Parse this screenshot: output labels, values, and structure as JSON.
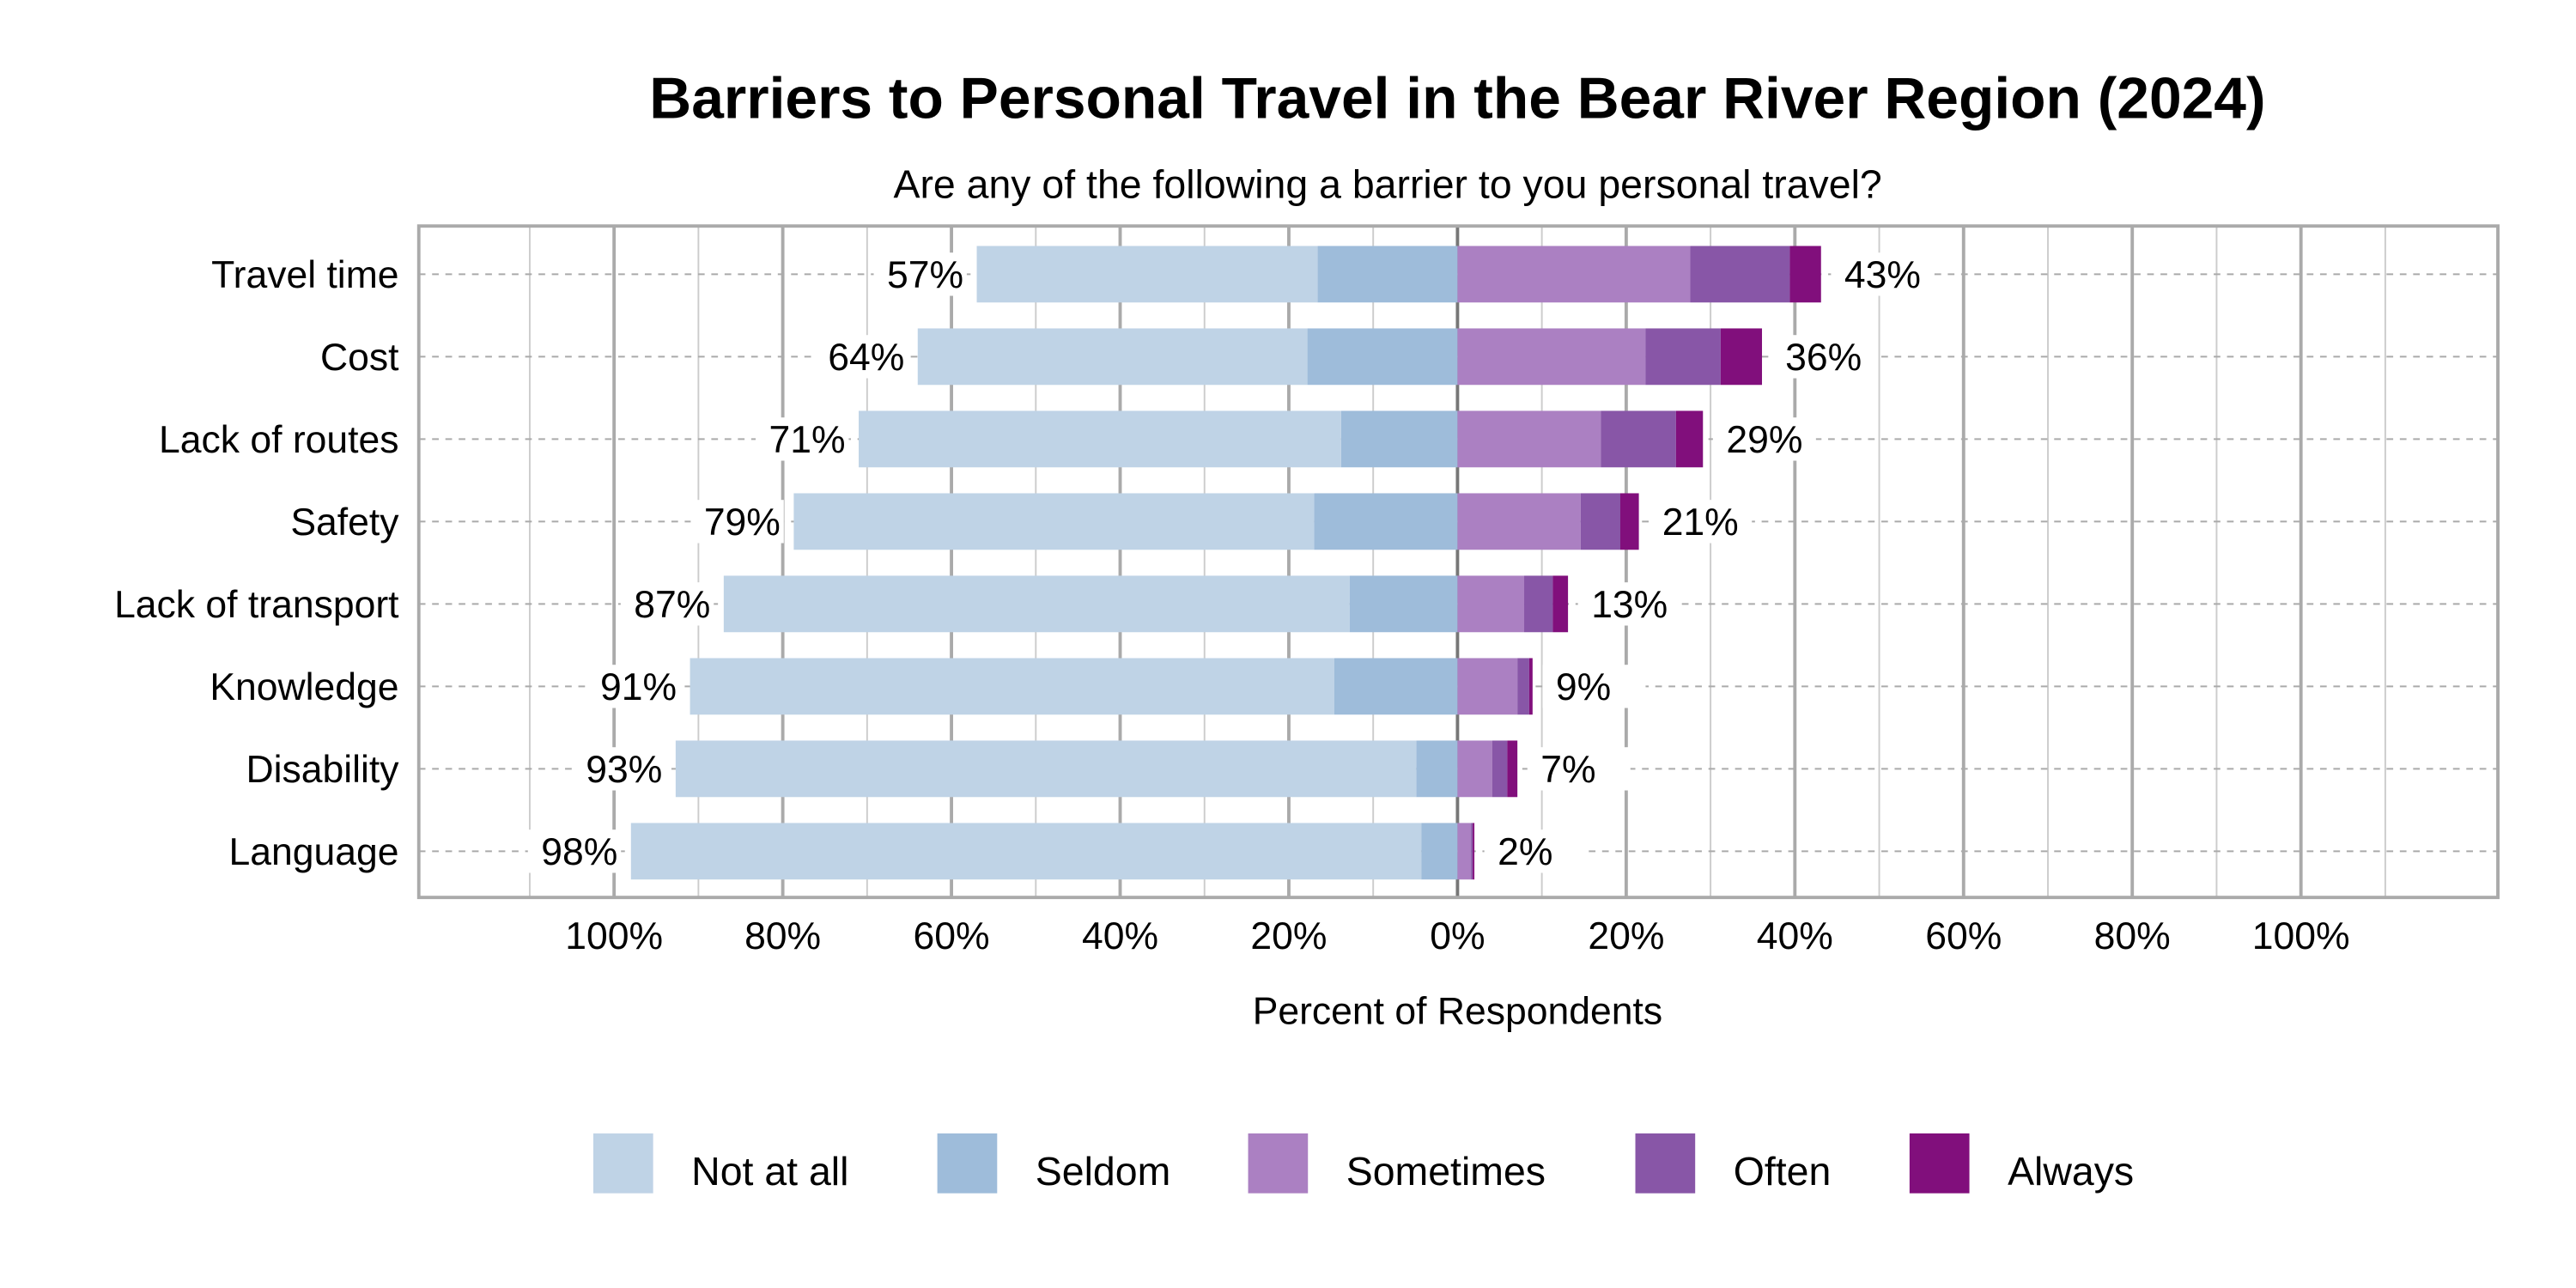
{
  "chart_data": {
    "type": "bar",
    "orientation": "horizontal",
    "stacked": "diverging",
    "title": "Barriers to Personal Travel in the Bear River Region (2024)",
    "subtitle": "Are any of the following a barrier to you personal travel?",
    "xlabel": "Percent of Respondents",
    "ylabel": "",
    "xlim": [
      -120,
      120
    ],
    "x_ticks": [
      "100%",
      "80%",
      "60%",
      "40%",
      "20%",
      "0%",
      "20%",
      "40%",
      "60%",
      "80%",
      "100%"
    ],
    "grid": true,
    "legend_position": "bottom",
    "categories": [
      "Travel time",
      "Cost",
      "Lack of routes",
      "Safety",
      "Lack of transport",
      "Knowledge",
      "Disability",
      "Language"
    ],
    "series": [
      {
        "name": "Not at all",
        "side": "left",
        "color": "#bfd3e6",
        "values": [
          40.4,
          46.2,
          57.2,
          61.7,
          74.2,
          76.4,
          87.8,
          93.7
        ]
      },
      {
        "name": "Seldom",
        "side": "left",
        "color": "#9ebcda",
        "values": [
          16.6,
          17.8,
          13.8,
          17.0,
          12.8,
          14.6,
          4.9,
          4.3
        ]
      },
      {
        "name": "Sometimes",
        "side": "right",
        "color": "#ab80c2",
        "values": [
          27.6,
          22.3,
          17.0,
          14.6,
          7.9,
          7.1,
          4.1,
          1.6
        ]
      },
      {
        "name": "Often",
        "side": "right",
        "color": "#8856a7",
        "values": [
          11.8,
          8.9,
          8.9,
          4.7,
          3.4,
          1.4,
          1.8,
          0.2
        ]
      },
      {
        "name": "Always",
        "side": "right",
        "color": "#810f7c",
        "values": [
          3.7,
          4.9,
          3.2,
          2.2,
          1.8,
          0.4,
          1.2,
          0.2
        ]
      }
    ],
    "left_totals_labels": [
      "57%",
      "64%",
      "71%",
      "79%",
      "87%",
      "91%",
      "93%",
      "98%"
    ],
    "right_totals_labels": [
      "43%",
      "36%",
      "29%",
      "21%",
      "13%",
      "9%",
      "7%",
      "2%"
    ]
  }
}
